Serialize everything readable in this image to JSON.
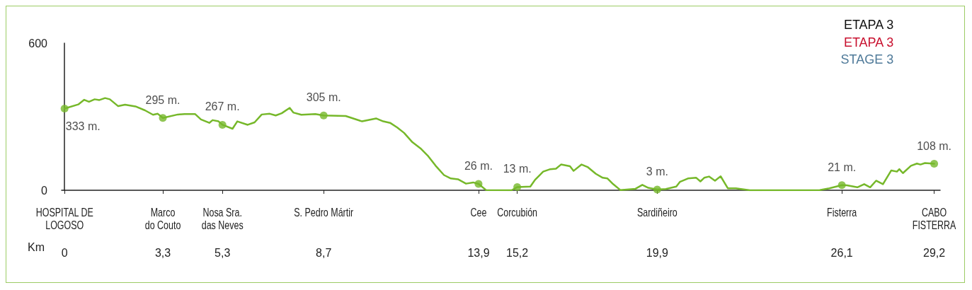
{
  "chart_data": {
    "type": "line",
    "title": "ETAPA 3",
    "subtitle": "ETAPA 3\nSTAGE 3",
    "xlabel": "Km",
    "xlim": [
      -0.1,
      29.4
    ],
    "xticks": [
      0,
      {
        "value": 3.3,
        "label": "3,3"
      },
      {
        "value": 5.3,
        "label": "5,3"
      },
      {
        "value": 8.7,
        "label": "8,7"
      },
      {
        "value": 13.9,
        "label": "13,9"
      },
      {
        "value": 15.2,
        "label": "15,2"
      },
      {
        "value": 19.9,
        "label": "19,9"
      },
      {
        "value": 26.1,
        "label": "26,1"
      },
      {
        "value": 29.2,
        "label": "29,2"
      }
    ],
    "ylim": [
      0,
      600
    ],
    "yticks": [
      0,
      600
    ],
    "grid": false,
    "annotations": [
      {
        "text": "HOSPITAL DE\nLOGOSO",
        "x": 0
      },
      {
        "text": "Marco\ndo Couto",
        "x": 3.3
      },
      {
        "text": "Nosa Sra.\ndas Neves",
        "x": 5.3
      },
      {
        "text": "S. Pedro Mártir",
        "x": 8.7
      },
      {
        "text": "Cee",
        "x": 13.9
      },
      {
        "text": "Corcubión",
        "x": 15.2
      },
      {
        "text": "Sardiñeiro",
        "x": 19.9
      },
      {
        "text": "Fisterra",
        "x": 26.1
      },
      {
        "text": "CABO\nFISTERRA",
        "x": 29.2
      }
    ],
    "series": [
      {
        "type": "line",
        "color": "#76b82a",
        "marker": "none",
        "x": [
          0,
          0.46,
          0.66,
          0.82,
          1.01,
          1.17,
          1.36,
          1.52,
          1.8,
          2.03,
          2.38,
          2.7,
          2.97,
          3.13,
          3.3,
          3.8,
          4.03,
          4.38,
          4.58,
          4.86,
          4.97,
          5.17,
          5.3,
          5.64,
          5.8,
          6.15,
          6.38,
          6.62,
          6.89,
          7.09,
          7.29,
          7.56,
          7.68,
          7.95,
          8.42,
          8.7,
          9.44,
          9.99,
          10.46,
          10.7,
          10.93,
          11.17,
          11.4,
          11.68,
          11.95,
          12.19,
          12.46,
          12.74,
          12.97,
          13.21,
          13.48,
          13.72,
          13.9,
          14.15,
          15.01,
          15.2,
          15.64,
          15.8,
          16.07,
          16.31,
          16.5,
          16.67,
          16.97,
          17.09,
          17.36,
          17.56,
          17.84,
          18.07,
          18.23,
          18.42,
          18.66,
          19.17,
          19.4,
          19.6,
          19.9,
          20.19,
          20.54,
          20.66,
          20.93,
          21.21,
          21.35,
          21.48,
          21.64,
          21.84,
          22.03,
          22.27,
          22.54,
          23.01,
          25.36,
          25.68,
          26.1,
          26.27,
          26.62,
          26.85,
          27.05,
          27.25,
          27.48,
          27.76,
          27.95,
          28.03,
          28.15,
          28.42,
          28.62,
          28.74,
          28.89,
          29.2
        ],
        "values": [
          333,
          350,
          369,
          361,
          371,
          368,
          376,
          371,
          343,
          349,
          342,
          326,
          308,
          312,
          295,
          309,
          311,
          311,
          289,
          275,
          286,
          281,
          267,
          251,
          281,
          267,
          277,
          309,
          312,
          305,
          314,
          336,
          317,
          308,
          311,
          305,
          303,
          281,
          293,
          281,
          275,
          256,
          234,
          196,
          171,
          142,
          100,
          62,
          48,
          45,
          27,
          32,
          26,
          1,
          0,
          13,
          15,
          43,
          76,
          86,
          88,
          105,
          98,
          79,
          105,
          95,
          67,
          51,
          48,
          25,
          1,
          6,
          22,
          10,
          3,
          5,
          15,
          34,
          48,
          51,
          36,
          51,
          56,
          39,
          57,
          8,
          8,
          0,
          1,
          8,
          21,
          20,
          12,
          25,
          12,
          39,
          25,
          81,
          76,
          86,
          70,
          100,
          109,
          105,
          111,
          108
        ]
      },
      {
        "type": "scatter",
        "color": "#76b82a",
        "marker": "circle",
        "x": [
          0,
          3.3,
          5.3,
          8.7,
          13.9,
          15.2,
          19.9,
          26.1,
          29.2
        ],
        "values": [
          333,
          295,
          267,
          305,
          26,
          13,
          3,
          21,
          108
        ],
        "value_labels": [
          "333 m.",
          "295 m.",
          "267 m.",
          "305 m.",
          "26 m.",
          "13 m.",
          "3 m.",
          "21 m.",
          "108 m."
        ]
      }
    ]
  }
}
